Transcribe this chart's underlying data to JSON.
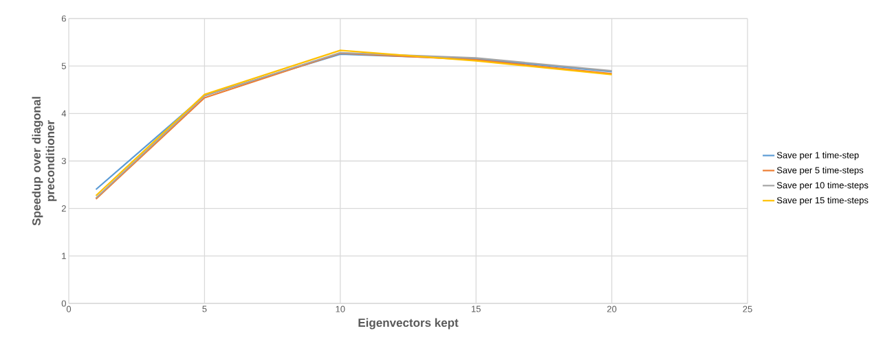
{
  "chart_data": {
    "type": "line",
    "xlabel": "Eigenvectors kept",
    "ylabel": "Speedup over diagonal preconditioner",
    "x": [
      1,
      5,
      10,
      15,
      20
    ],
    "series": [
      {
        "name": "Save per 1 time-step",
        "color": "#5b9bd5",
        "values": [
          2.4,
          4.38,
          5.25,
          5.15,
          4.88
        ]
      },
      {
        "name": "Save per 5 time-steps",
        "color": "#ed7d31",
        "values": [
          2.2,
          4.33,
          5.27,
          5.13,
          4.84
        ]
      },
      {
        "name": "Save per 10 time-steps",
        "color": "#a5a5a5",
        "values": [
          2.22,
          4.37,
          5.28,
          5.17,
          4.9
        ]
      },
      {
        "name": "Save per 15 time-steps",
        "color": "#ffc000",
        "values": [
          2.27,
          4.4,
          5.33,
          5.11,
          4.82
        ]
      }
    ],
    "xlim": [
      0,
      25
    ],
    "xticks": [
      0,
      5,
      10,
      15,
      20,
      25
    ],
    "ylim": [
      0,
      6
    ],
    "yticks": [
      0,
      1,
      2,
      3,
      4,
      5,
      6
    ],
    "grid": true,
    "legend": "right",
    "marker": "none",
    "line_style": "solid"
  }
}
